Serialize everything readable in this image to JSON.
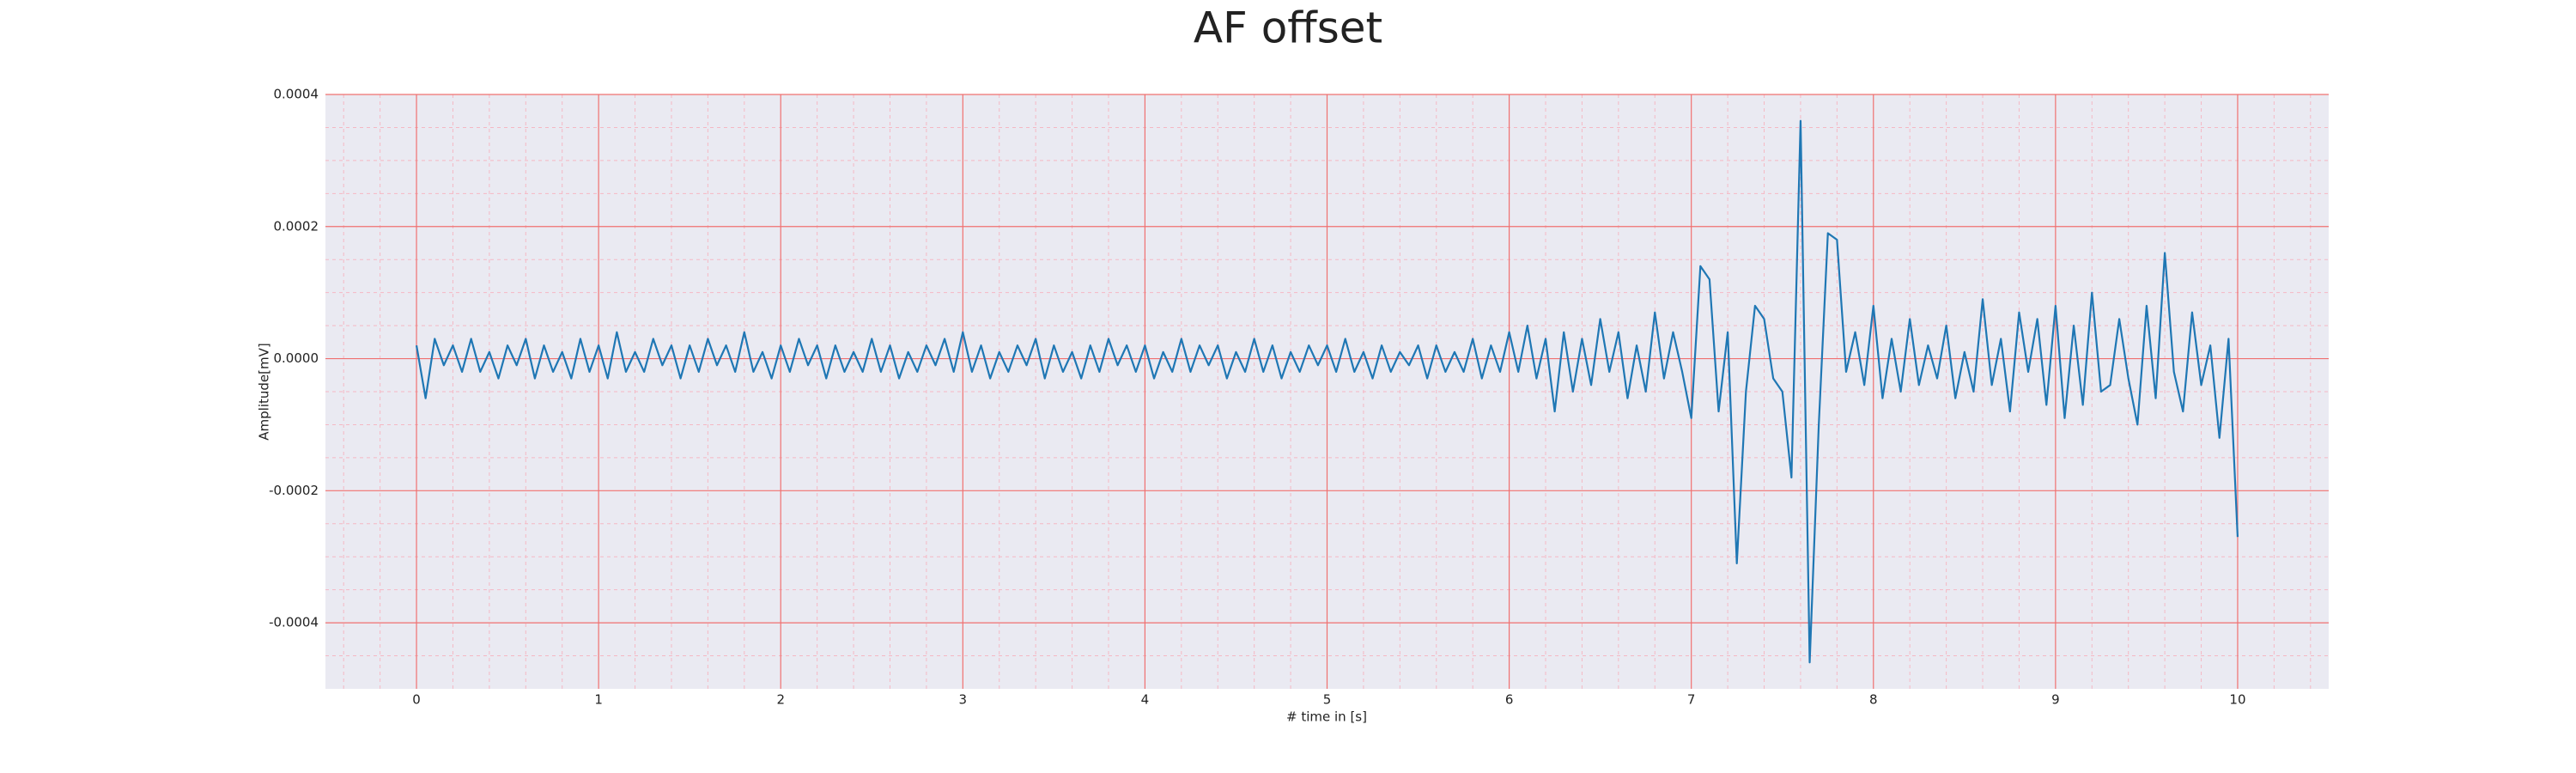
{
  "chart_data": {
    "type": "line",
    "title": "AF offset",
    "xlabel": "# time in [s]",
    "ylabel": "Amplitude[mV]",
    "color": "#1f77b4",
    "grid": true,
    "minor_grid": true,
    "xlim": [
      -0.5,
      10.5
    ],
    "ylim": [
      -0.0005,
      0.0004
    ],
    "xticks": [
      0,
      1,
      2,
      3,
      4,
      5,
      6,
      7,
      8,
      9,
      10
    ],
    "yticks": [
      0.0004,
      0.0002,
      {
        "value": 0,
        "label": "0.0000"
      },
      -0.0002,
      -0.0004
    ],
    "xminorticks": [
      -0.4,
      -0.2,
      0.2,
      0.4,
      0.6,
      0.8,
      1.2,
      1.4,
      1.6,
      1.8,
      2.2,
      2.4,
      2.6,
      2.8,
      3.2,
      3.4,
      3.6,
      3.8,
      4.2,
      4.4,
      4.6,
      4.8,
      5.2,
      5.4,
      5.6,
      5.8,
      6.2,
      6.4,
      6.6,
      6.8,
      7.2,
      7.4,
      7.6,
      7.8,
      8.2,
      8.4,
      8.6,
      8.8,
      9.2,
      9.4,
      9.6,
      9.8,
      10.2,
      10.4
    ],
    "yminorticks": [
      0.00035,
      0.0003,
      0.00025,
      0.00015,
      0.0001,
      5e-05,
      -5e-05,
      -0.0001,
      -0.00015,
      -0.00025,
      -0.0003,
      -0.00035,
      -0.00045
    ],
    "x": [
      0,
      0.05,
      0.1,
      0.15,
      0.2,
      0.25,
      0.3,
      0.35,
      0.4,
      0.45,
      0.5,
      0.55,
      0.6,
      0.65,
      0.7,
      0.75,
      0.8,
      0.85,
      0.9,
      0.95,
      1,
      1.05,
      1.1,
      1.15,
      1.2,
      1.25,
      1.3,
      1.35,
      1.4,
      1.45,
      1.5,
      1.55,
      1.6,
      1.65,
      1.7,
      1.75,
      1.8,
      1.85,
      1.9,
      1.95,
      2,
      2.05,
      2.1,
      2.15,
      2.2,
      2.25,
      2.3,
      2.35,
      2.4,
      2.45,
      2.5,
      2.55,
      2.6,
      2.65,
      2.7,
      2.75,
      2.8,
      2.85,
      2.9,
      2.95,
      3,
      3.05,
      3.1,
      3.15,
      3.2,
      3.25,
      3.3,
      3.35,
      3.4,
      3.45,
      3.5,
      3.55,
      3.6,
      3.65,
      3.7,
      3.75,
      3.8,
      3.85,
      3.9,
      3.95,
      4,
      4.05,
      4.1,
      4.15,
      4.2,
      4.25,
      4.3,
      4.35,
      4.4,
      4.45,
      4.5,
      4.55,
      4.6,
      4.65,
      4.7,
      4.75,
      4.8,
      4.85,
      4.9,
      4.95,
      5,
      5.05,
      5.1,
      5.15,
      5.2,
      5.25,
      5.3,
      5.35,
      5.4,
      5.45,
      5.5,
      5.55,
      5.6,
      5.65,
      5.7,
      5.75,
      5.8,
      5.85,
      5.9,
      5.95,
      6,
      6.05,
      6.1,
      6.15,
      6.2,
      6.25,
      6.3,
      6.35,
      6.4,
      6.45,
      6.5,
      6.55,
      6.6,
      6.65,
      6.7,
      6.75,
      6.8,
      6.85,
      6.9,
      6.95,
      7,
      7.05,
      7.1,
      7.15,
      7.2,
      7.25,
      7.3,
      7.35,
      7.4,
      7.45,
      7.5,
      7.55,
      7.6,
      7.65,
      7.7,
      7.75,
      7.8,
      7.85,
      7.9,
      7.95,
      8,
      8.05,
      8.1,
      8.15,
      8.2,
      8.25,
      8.3,
      8.35,
      8.4,
      8.45,
      8.5,
      8.55,
      8.6,
      8.65,
      8.7,
      8.75,
      8.8,
      8.85,
      8.9,
      8.95,
      9,
      9.05,
      9.1,
      9.15,
      9.2,
      9.25,
      9.3,
      9.35,
      9.4,
      9.45,
      9.5,
      9.55,
      9.6,
      9.65,
      9.7,
      9.75,
      9.8,
      9.85,
      9.9,
      9.95,
      10
    ],
    "values": [
      2e-05,
      -6e-05,
      3e-05,
      -1e-05,
      2e-05,
      -2e-05,
      3e-05,
      -2e-05,
      1e-05,
      -3e-05,
      2e-05,
      -1e-05,
      3e-05,
      -3e-05,
      2e-05,
      -2e-05,
      1e-05,
      -3e-05,
      3e-05,
      -2e-05,
      2e-05,
      -3e-05,
      4e-05,
      -2e-05,
      1e-05,
      -2e-05,
      3e-05,
      -1e-05,
      2e-05,
      -3e-05,
      2e-05,
      -2e-05,
      3e-05,
      -1e-05,
      2e-05,
      -2e-05,
      4e-05,
      -2e-05,
      1e-05,
      -3e-05,
      2e-05,
      -2e-05,
      3e-05,
      -1e-05,
      2e-05,
      -3e-05,
      2e-05,
      -2e-05,
      1e-05,
      -2e-05,
      3e-05,
      -2e-05,
      2e-05,
      -3e-05,
      1e-05,
      -2e-05,
      2e-05,
      -1e-05,
      3e-05,
      -2e-05,
      4e-05,
      -2e-05,
      2e-05,
      -3e-05,
      1e-05,
      -2e-05,
      2e-05,
      -1e-05,
      3e-05,
      -3e-05,
      2e-05,
      -2e-05,
      1e-05,
      -3e-05,
      2e-05,
      -2e-05,
      3e-05,
      -1e-05,
      2e-05,
      -2e-05,
      2e-05,
      -3e-05,
      1e-05,
      -2e-05,
      3e-05,
      -2e-05,
      2e-05,
      -1e-05,
      2e-05,
      -3e-05,
      1e-05,
      -2e-05,
      3e-05,
      -2e-05,
      2e-05,
      -3e-05,
      1e-05,
      -2e-05,
      2e-05,
      -1e-05,
      2e-05,
      -2e-05,
      3e-05,
      -2e-05,
      1e-05,
      -3e-05,
      2e-05,
      -2e-05,
      1e-05,
      -1e-05,
      2e-05,
      -3e-05,
      2e-05,
      -2e-05,
      1e-05,
      -2e-05,
      3e-05,
      -3e-05,
      2e-05,
      -2e-05,
      4e-05,
      -2e-05,
      5e-05,
      -3e-05,
      3e-05,
      -8e-05,
      4e-05,
      -5e-05,
      3e-05,
      -4e-05,
      6e-05,
      -2e-05,
      4e-05,
      -6e-05,
      2e-05,
      -5e-05,
      7e-05,
      -3e-05,
      4e-05,
      -2e-05,
      -9e-05,
      0.00014,
      0.00012,
      -8e-05,
      4e-05,
      -0.00031,
      -5e-05,
      8e-05,
      6e-05,
      -3e-05,
      -5e-05,
      -0.00018,
      0.00036,
      -0.00046,
      -0.0001,
      0.00019,
      0.00018,
      -2e-05,
      4e-05,
      -4e-05,
      8e-05,
      -6e-05,
      3e-05,
      -5e-05,
      6e-05,
      -4e-05,
      2e-05,
      -3e-05,
      5e-05,
      -6e-05,
      1e-05,
      -5e-05,
      9e-05,
      -4e-05,
      3e-05,
      -8e-05,
      7e-05,
      -2e-05,
      6e-05,
      -7e-05,
      8e-05,
      -9e-05,
      5e-05,
      -7e-05,
      0.0001,
      -5e-05,
      -4e-05,
      6e-05,
      -3e-05,
      -0.0001,
      8e-05,
      -6e-05,
      0.00016,
      -2e-05,
      -8e-05,
      7e-05,
      -4e-05,
      2e-05,
      -0.00012,
      3e-05,
      -0.00027
    ]
  }
}
